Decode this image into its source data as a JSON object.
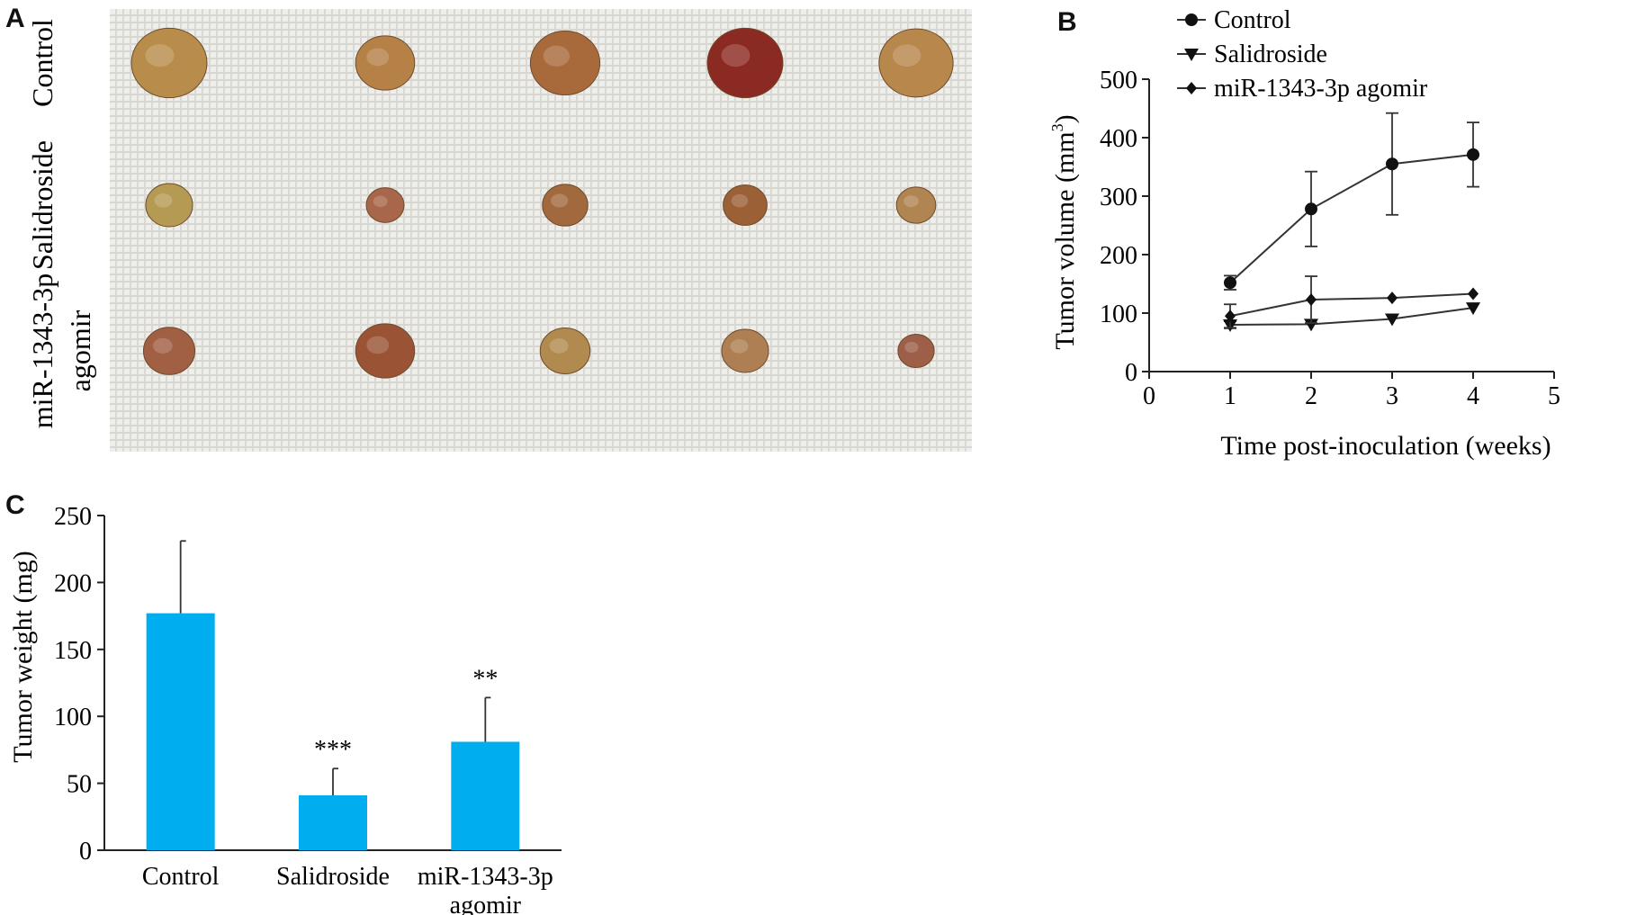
{
  "panels": {
    "a": "A",
    "b": "B",
    "c": "C"
  },
  "photo": {
    "rows": [
      {
        "label_lines": [
          "Control"
        ],
        "tumors": [
          {
            "color": "#b88c4a",
            "size": 1.0
          },
          {
            "color": "#b58146",
            "size": 0.78
          },
          {
            "color": "#a8693b",
            "size": 0.92
          },
          {
            "color": "#8b2a22",
            "size": 1.0
          },
          {
            "color": "#b8874c",
            "size": 0.98
          }
        ]
      },
      {
        "label_lines": [
          "Salidroside"
        ],
        "tumors": [
          {
            "color": "#b59a54",
            "size": 0.62
          },
          {
            "color": "#a8664a",
            "size": 0.5
          },
          {
            "color": "#a2693f",
            "size": 0.6
          },
          {
            "color": "#9c6036",
            "size": 0.58
          },
          {
            "color": "#b08552",
            "size": 0.52
          }
        ]
      },
      {
        "label_lines": [
          "miR-1343-3p",
          "agomir"
        ],
        "tumors": [
          {
            "color": "#a15f44",
            "size": 0.68
          },
          {
            "color": "#9a5334",
            "size": 0.78
          },
          {
            "color": "#b08a4e",
            "size": 0.66
          },
          {
            "color": "#ad7f52",
            "size": 0.62
          },
          {
            "color": "#9d5f47",
            "size": 0.48
          }
        ]
      }
    ]
  },
  "chart_data": [
    {
      "type": "line",
      "xlabel": "Time post-inoculation (weeks)",
      "ylabel": "Tumor volume (mm",
      "ylabel_sup": "3",
      "ylabel_end": ")",
      "xlim": [
        0,
        5
      ],
      "ylim": [
        0,
        500
      ],
      "xticks": [
        "0",
        "1",
        "2",
        "3",
        "4",
        "5"
      ],
      "yticks": [
        "0",
        "100",
        "200",
        "300",
        "400",
        "500"
      ],
      "legend_position": "top-left",
      "x": [
        1,
        2,
        3,
        4
      ],
      "series": [
        {
          "name": "Control",
          "marker": "circle",
          "values": [
            152,
            278,
            355,
            371
          ],
          "errors": [
            12,
            64,
            87,
            55
          ]
        },
        {
          "name": "Salidroside",
          "marker": "triangle-down",
          "values": [
            80,
            81,
            90,
            109
          ],
          "errors": [
            6,
            0,
            0,
            0
          ]
        },
        {
          "name": "miR-1343-3p agomir",
          "marker": "diamond",
          "values": [
            95,
            123,
            126,
            133
          ],
          "errors": [
            20,
            40,
            0,
            0
          ]
        }
      ]
    },
    {
      "type": "bar",
      "ylabel": "Tumor weight (mg)",
      "ylim": [
        0,
        250
      ],
      "yticks": [
        "0",
        "50",
        "100",
        "150",
        "200",
        "250"
      ],
      "categories": [
        [
          "Control"
        ],
        [
          "Salidroside"
        ],
        [
          "miR-1343-3p",
          "agomir"
        ]
      ],
      "values": [
        177,
        41,
        81
      ],
      "errors": [
        54,
        20,
        33
      ],
      "significance": [
        "",
        "***",
        "**"
      ],
      "bar_color": "#00aeef"
    }
  ]
}
